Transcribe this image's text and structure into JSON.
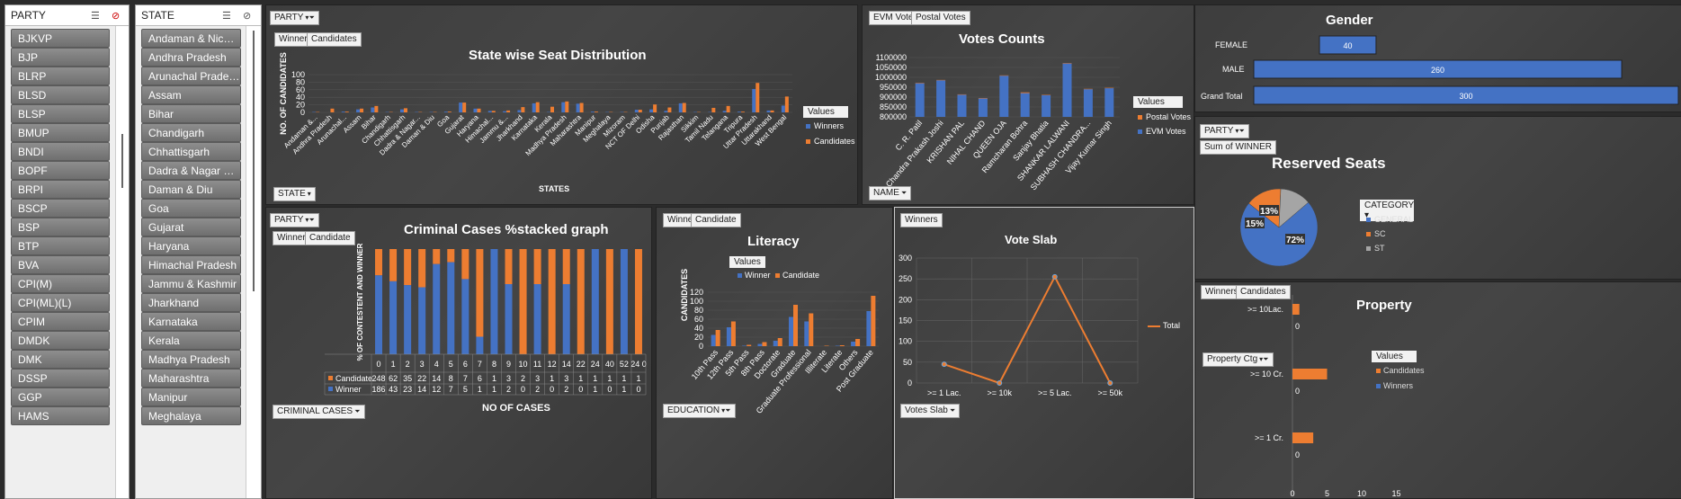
{
  "colors": {
    "blue": "#4472c4",
    "orange": "#ed7d31",
    "gray": "#a5a5a5",
    "bg": "#2b2b2b"
  },
  "party_slicer": {
    "header": "PARTY",
    "items": [
      "BJKVP",
      "BJP",
      "BLRP",
      "BLSD",
      "BLSP",
      "BMUP",
      "BNDI",
      "BOPF",
      "BRPI",
      "BSCP",
      "BSP",
      "BTP",
      "BVA",
      "CPI(M)",
      "CPI(ML)(L)",
      "CPIM",
      "DMDK",
      "DMK",
      "DSSP",
      "GGP",
      "HAMS"
    ]
  },
  "state_slicer": {
    "header": "STATE",
    "items": [
      "Andaman & Nicoba...",
      "Andhra Pradesh",
      "Arunachal Pradesh",
      "Assam",
      "Bihar",
      "Chandigarh",
      "Chhattisgarh",
      "Dadra & Nagar Hav...",
      "Daman & Diu",
      "Goa",
      "Gujarat",
      "Haryana",
      "Himachal Pradesh",
      "Jammu & Kashmir",
      "Jharkhand",
      "Karnataka",
      "Kerala",
      "Madhya Pradesh",
      "Maharashtra",
      "Manipur",
      "Meghalaya"
    ]
  },
  "state_chart": {
    "filter_btn": "PARTY",
    "field_btns": [
      "Winners",
      "Candidates"
    ],
    "axis_btn": "STATE",
    "title": "State wise Seat Distribution",
    "ylabel": "NO. OF CANDIDATES",
    "xlabel": "STATES",
    "legend_title": "Values",
    "legend": [
      "Winners",
      "Candidates"
    ]
  },
  "votes_chart": {
    "field_btns": [
      "EVM Votes",
      "Postal Votes"
    ],
    "axis_btn": "NAME",
    "title": "Votes Counts",
    "legend_title": "Values",
    "legend": [
      "Postal Votes",
      "EVM Votes"
    ]
  },
  "gender_chart": {
    "title": "Gender",
    "rows": [
      {
        "label": "FEMALE",
        "value": 40
      },
      {
        "label": "MALE",
        "value": 260
      },
      {
        "label": "Grand Total",
        "value": 300
      }
    ]
  },
  "reserved_chart": {
    "filter_btn": "PARTY",
    "field_btn": "Sum of WINNER",
    "title": "Reserved Seats",
    "legend_title": "CATEGORY",
    "legend": [
      "GENERAL",
      "SC",
      "ST"
    ],
    "labels": [
      "72%",
      "15%",
      "13%"
    ]
  },
  "criminal_chart": {
    "filter_btn": "PARTY",
    "field_btns": [
      "Winner",
      "Candidate"
    ],
    "axis_btn": "CRIMINAL CASES",
    "title": "Criminal Cases %stacked graph",
    "ylabel": "% OF CONTESTENT AND WINNER",
    "xlabel": "NO OF CASES",
    "row_labels": [
      "Candidate",
      "Winner"
    ]
  },
  "literacy_chart": {
    "field_btns": [
      "Winner",
      "Candidate"
    ],
    "axis_btn": "EDUCATION",
    "title": "Literacy",
    "ylabel": "CANDIDATES",
    "legend_title": "Values",
    "legend": [
      "Winner",
      "Candidate"
    ]
  },
  "voteslab_chart": {
    "field_btn": "Winners",
    "axis_btn": "Votes Slab",
    "title": "Vote Slab",
    "legend": [
      "Total"
    ]
  },
  "property_chart": {
    "field_btns": [
      "Winners",
      "Candidates"
    ],
    "filter_btn": "Property Ctg",
    "title": "Property",
    "legend_title": "Values",
    "legend": [
      "Candidates",
      "Winners"
    ]
  },
  "chart_data": [
    {
      "type": "bar",
      "title": "State wise Seat Distribution",
      "xlabel": "STATES",
      "ylabel": "NO. OF CANDIDATES",
      "ylim": [
        0,
        100
      ],
      "categories": [
        "Andaman &...",
        "Andhra Pradesh",
        "Arunachal...",
        "Assam",
        "Bihar",
        "Chandigarh",
        "Chhattisgarh",
        "Dadra & Nagar...",
        "Daman & Diu",
        "Goa",
        "Gujarat",
        "Haryana",
        "Himachal...",
        "Jammu &...",
        "Jharkhand",
        "Karnataka",
        "Kerala",
        "Madhya Pradesh",
        "Maharashtra",
        "Manipur",
        "Meghalaya",
        "Mizoram",
        "NCT OF Delhi",
        "Odisha",
        "Punjab",
        "Rajasthan",
        "Sikkim",
        "Tamil Nadu",
        "Telangana",
        "Tripura",
        "Uttar Pradesh",
        "Uttarakhand",
        "West Bengal"
      ],
      "series": [
        {
          "name": "Winners",
          "values": [
            1,
            0,
            2,
            8,
            13,
            1,
            8,
            1,
            1,
            2,
            26,
            10,
            4,
            3,
            6,
            24,
            1,
            27,
            23,
            2,
            1,
            1,
            7,
            8,
            4,
            24,
            1,
            1,
            4,
            2,
            62,
            5,
            18
          ]
        },
        {
          "name": "Candidates",
          "values": [
            1,
            10,
            2,
            10,
            17,
            1,
            11,
            1,
            1,
            2,
            26,
            10,
            4,
            5,
            14,
            27,
            15,
            29,
            25,
            2,
            1,
            1,
            7,
            21,
            13,
            25,
            1,
            12,
            17,
            2,
            78,
            5,
            42
          ]
        }
      ]
    },
    {
      "type": "bar",
      "title": "Votes Counts",
      "ylim": [
        800000,
        1100000
      ],
      "categories": [
        "C. R. Patil",
        "Chandra Prakash Joshi",
        "KRISHAN PAL",
        "NIHAL CHAND",
        "QUEEN OJA",
        "Ramcharan Bohra",
        "Sanjay Bhatia",
        "SHANKAR LALWANI",
        "SUBHASH CHANDRA...",
        "Vijay Kumar Singh"
      ],
      "series": [
        {
          "name": "Postal Votes",
          "values": [
            2000,
            2000,
            2000,
            2000,
            2000,
            4000,
            2000,
            2000,
            2000,
            2000
          ]
        },
        {
          "name": "EVM Votes",
          "values": [
            970000,
            985000,
            912000,
            893000,
            1008000,
            920000,
            910000,
            1070000,
            940000,
            945000
          ]
        }
      ]
    },
    {
      "type": "bar",
      "title": "Gender",
      "categories": [
        "FEMALE",
        "MALE",
        "Grand Total"
      ],
      "values": [
        40,
        260,
        300
      ]
    },
    {
      "type": "pie",
      "title": "Reserved Seats",
      "categories": [
        "GENERAL",
        "SC",
        "ST"
      ],
      "values": [
        72,
        15,
        13
      ]
    },
    {
      "type": "bar",
      "title": "Criminal Cases %stacked graph",
      "xlabel": "NO OF CASES",
      "ylabel": "% OF CONTESTENT AND WINNER",
      "categories": [
        "0",
        "1",
        "2",
        "3",
        "4",
        "5",
        "6",
        "7",
        "8",
        "9",
        "10",
        "11",
        "12",
        "14",
        "22",
        "24",
        "40",
        "52",
        "24 0"
      ],
      "series": [
        {
          "name": "Candidate",
          "values": [
            248,
            62,
            35,
            22,
            14,
            8,
            7,
            6,
            1,
            3,
            2,
            3,
            1,
            3,
            1,
            1,
            1,
            1,
            1
          ]
        },
        {
          "name": "Winner",
          "values": [
            186,
            43,
            23,
            14,
            12,
            7,
            5,
            1,
            1,
            2,
            0,
            2,
            0,
            2,
            0,
            1,
            0,
            1,
            0
          ]
        }
      ]
    },
    {
      "type": "bar",
      "title": "Literacy",
      "ylabel": "CANDIDATES",
      "ylim": [
        0,
        120
      ],
      "categories": [
        "10th Pass",
        "12th Pass",
        "5th Pass",
        "8th Pass",
        "Doctorate",
        "Graduate",
        "Graduate Professional",
        "Illiterate",
        "Literate",
        "Others",
        "Post Graduate"
      ],
      "series": [
        {
          "name": "Winner",
          "values": [
            25,
            42,
            1,
            5,
            12,
            65,
            55,
            0,
            1,
            10,
            78
          ]
        },
        {
          "name": "Candidate",
          "values": [
            36,
            55,
            3,
            9,
            18,
            92,
            73,
            1,
            2,
            16,
            112
          ]
        }
      ]
    },
    {
      "type": "line",
      "title": "Vote Slab",
      "categories": [
        ">= 1 Lac.",
        ">= 10k",
        ">= 5 Lac.",
        ">= 50k"
      ],
      "ylim": [
        0,
        300
      ],
      "series": [
        {
          "name": "Total",
          "values": [
            45,
            0,
            255,
            0
          ]
        }
      ]
    },
    {
      "type": "bar",
      "title": "Property",
      "categories": [
        ">= 10Lac.",
        ">= 10 Cr.",
        ">= 1 Cr."
      ],
      "series": [
        {
          "name": "Candidates",
          "values": [
            1,
            5,
            3
          ]
        },
        {
          "name": "Winners",
          "values": [
            0,
            0,
            0
          ]
        }
      ],
      "data_labels": [
        "0",
        "0",
        "0"
      ],
      "xticks": [
        "0",
        "5",
        "10",
        "15"
      ]
    }
  ]
}
